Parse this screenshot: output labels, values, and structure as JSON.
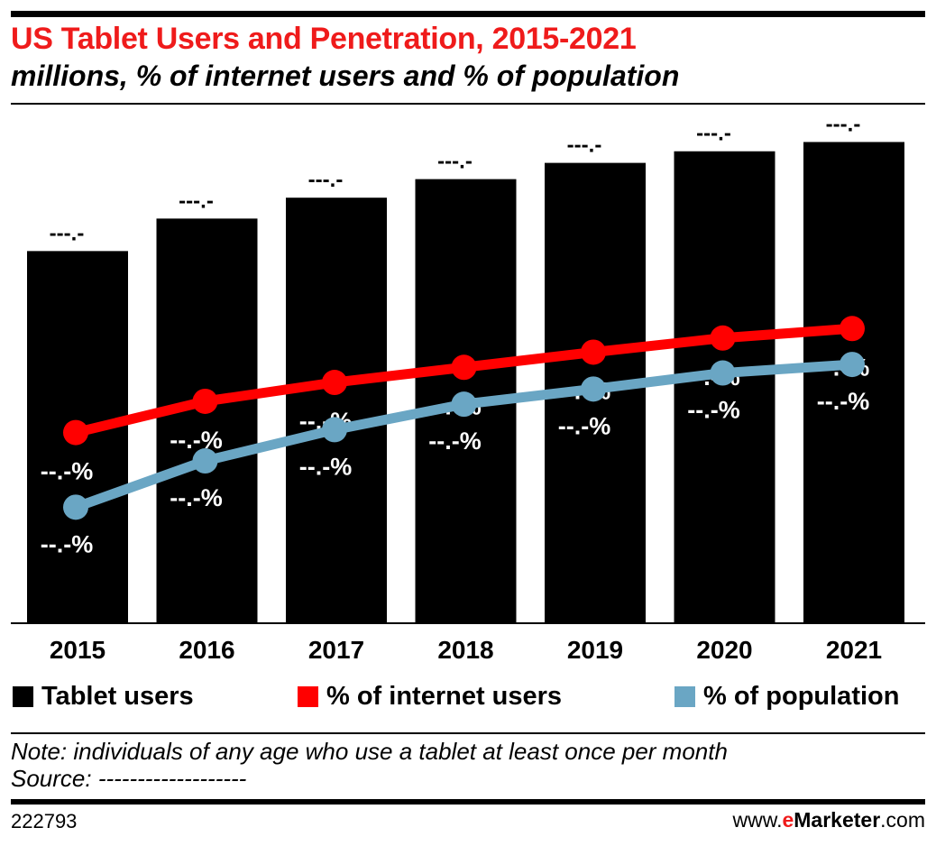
{
  "header": {
    "title": "US Tablet Users and Penetration, 2015-2021",
    "subtitle": "millions, % of internet users and % of population"
  },
  "chart_data": {
    "type": "bar",
    "categories": [
      "2015",
      "2016",
      "2017",
      "2018",
      "2019",
      "2020",
      "2021"
    ],
    "series": [
      {
        "name": "Tablet users",
        "type": "bar",
        "color": "#000000",
        "values": [
          160,
          174,
          183,
          191,
          198,
          203,
          207
        ],
        "labels": [
          "---.-",
          "---.-",
          "---.-",
          "---.-",
          "---.-",
          "---.-",
          "---.-"
        ]
      },
      {
        "name": "% of internet users",
        "type": "line",
        "color": "#ff0000",
        "values": [
          56.3,
          59.6,
          61.6,
          63.2,
          64.8,
          66.3,
          67.3
        ],
        "labels": [
          "--.-%",
          "--.-%",
          "--.-%",
          "--.-%",
          "--.-%",
          "--.-%",
          "--.-%"
        ]
      },
      {
        "name": "% of population",
        "type": "line",
        "color": "#6aa6c4",
        "values": [
          48.4,
          53.3,
          56.6,
          59.3,
          60.9,
          62.6,
          63.5
        ],
        "labels": [
          "--.-%",
          "--.-%",
          "--.-%",
          "--.-%",
          "--.-%",
          "--.-%",
          "--.-%"
        ]
      }
    ],
    "ylim": [
      0,
      220
    ],
    "grid": false,
    "legend": "bottom"
  },
  "legend": {
    "items": [
      {
        "label": "Tablet users",
        "color": "#000000"
      },
      {
        "label": "% of internet users",
        "color": "#ff0000"
      },
      {
        "label": "% of population",
        "color": "#6aa6c4"
      }
    ]
  },
  "notes": {
    "note": "Note: individuals of any age who use a tablet at least once per month",
    "source": "Source: -------------------"
  },
  "footer": {
    "chart_id": "222793",
    "brand_prefix": "www.",
    "brand_e": "e",
    "brand_name": "Marketer",
    "brand_suffix": ".com"
  }
}
